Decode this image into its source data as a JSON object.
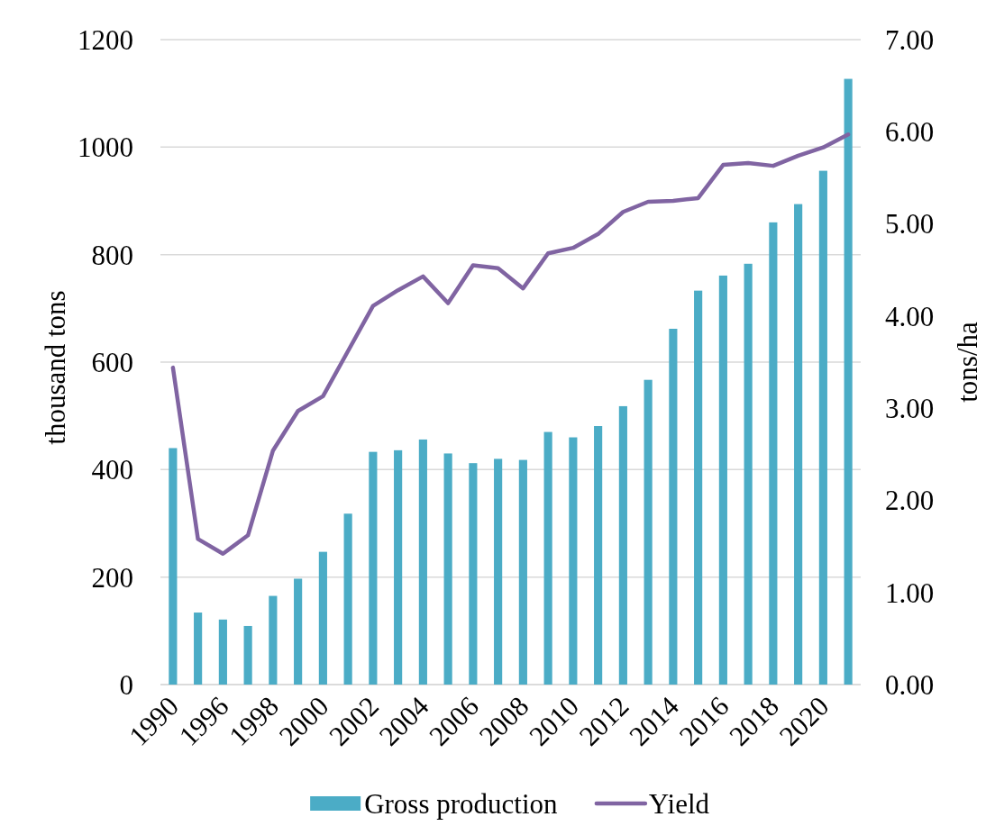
{
  "chart_data": {
    "type": "bar",
    "categories": [
      "1990",
      null,
      "1996",
      null,
      "1998",
      null,
      "2000",
      null,
      "2002",
      null,
      "2004",
      null,
      "2006",
      null,
      "2008",
      null,
      "2010",
      null,
      "2012",
      null,
      "2014",
      null,
      "2016",
      null,
      "2018",
      null,
      "2020",
      null
    ],
    "series": [
      {
        "name": "Gross production",
        "color": "#4bacc6",
        "values": [
          440,
          134,
          121,
          109,
          165,
          197,
          247,
          318,
          433,
          436,
          456,
          430,
          412,
          420,
          418,
          470,
          460,
          481,
          518,
          567,
          662,
          733,
          761,
          783,
          860,
          894,
          956,
          1127
        ]
      },
      {
        "name": "Yield",
        "type": "line",
        "axis": "y2",
        "color": "#8064a2",
        "values": [
          3.44,
          1.58,
          1.42,
          1.62,
          2.54,
          2.97,
          3.13,
          3.62,
          4.11,
          4.28,
          4.43,
          4.14,
          4.55,
          4.52,
          4.3,
          4.68,
          4.74,
          4.89,
          5.13,
          5.24,
          5.25,
          5.28,
          5.64,
          5.66,
          5.63,
          5.74,
          5.83,
          5.97
        ]
      }
    ],
    "ylabel": "thousand tons",
    "y2label": "tons/ha",
    "ylim": [
      0,
      1200
    ],
    "yticks": [
      0,
      200,
      400,
      600,
      800,
      1000,
      1200
    ],
    "y2lim": [
      0,
      7
    ],
    "y2ticks": [
      {
        "value": 0,
        "label": "0.00"
      },
      {
        "value": 1,
        "label": "1.00"
      },
      {
        "value": 2,
        "label": "2.00"
      },
      {
        "value": 3,
        "label": "3.00"
      },
      {
        "value": 4,
        "label": "4.00"
      },
      {
        "value": 5,
        "label": "5.00"
      },
      {
        "value": 6,
        "label": "6.00"
      },
      {
        "value": 7,
        "label": "7.00"
      }
    ],
    "grid": "y",
    "legend": "bottom",
    "line_style": "solid"
  }
}
